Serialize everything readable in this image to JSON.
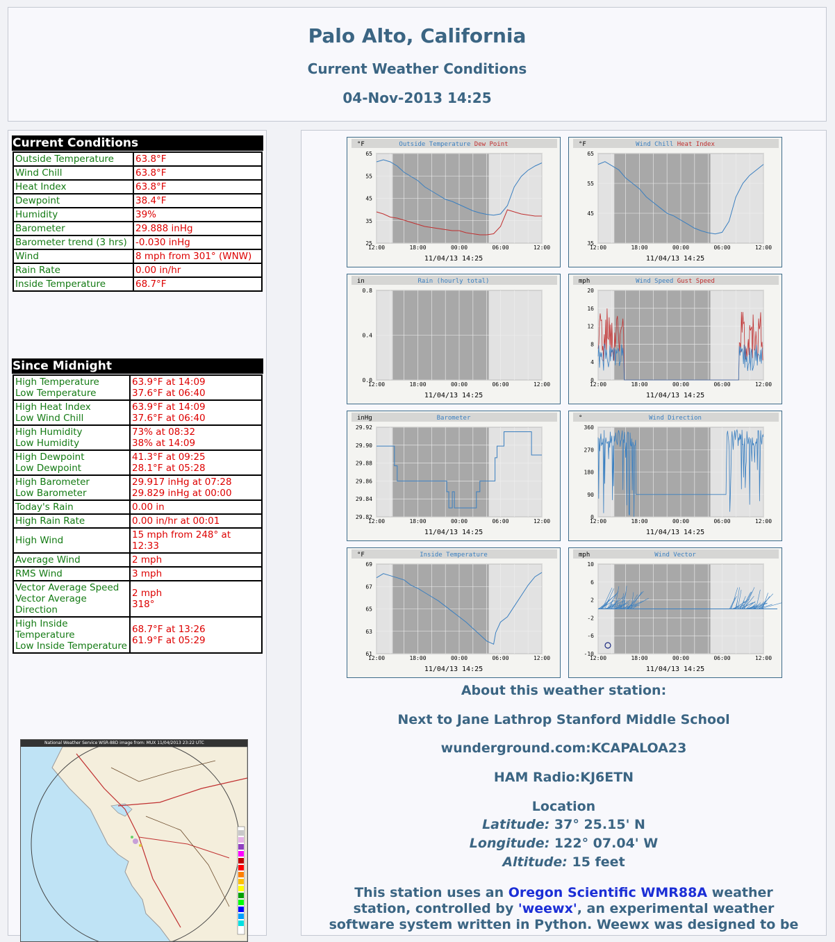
{
  "header": {
    "title": "Palo Alto, California",
    "subtitle": "Current Weather Conditions",
    "datetime": "04-Nov-2013 14:25"
  },
  "current": {
    "title": "Current Conditions",
    "rows": [
      {
        "label": "Outside Temperature",
        "value": "63.8°F"
      },
      {
        "label": "Wind Chill",
        "value": "63.8°F"
      },
      {
        "label": "Heat Index",
        "value": "63.8°F"
      },
      {
        "label": "Dewpoint",
        "value": "38.4°F"
      },
      {
        "label": "Humidity",
        "value": "39%"
      },
      {
        "label": "Barometer",
        "value": "29.888 inHg"
      },
      {
        "label": "Barometer trend (3 hrs)",
        "value": "-0.030 inHg"
      },
      {
        "label": "Wind",
        "value": "8 mph from 301° (WNW)"
      },
      {
        "label": "Rain Rate",
        "value": "0.00 in/hr"
      },
      {
        "label": "Inside Temperature",
        "value": "68.7°F"
      }
    ]
  },
  "since": {
    "title": "Since Midnight",
    "rows": [
      {
        "label1": "High Temperature",
        "label2": "Low Temperature",
        "value1": "63.9°F at 14:09",
        "value2": "37.6°F at 06:40"
      },
      {
        "label1": "High Heat Index",
        "label2": "Low Wind Chill",
        "value1": "63.9°F at 14:09",
        "value2": "37.6°F at 06:40"
      },
      {
        "label1": "High Humidity",
        "label2": "Low Humidity",
        "value1": "73% at 08:32",
        "value2": "38% at 14:09"
      },
      {
        "label1": "High Dewpoint",
        "label2": "Low Dewpoint",
        "value1": "41.3°F at 09:25",
        "value2": "28.1°F at 05:28"
      },
      {
        "label1": "High Barometer",
        "label2": "Low Barometer",
        "value1": "29.917 inHg at 07:28",
        "value2": "29.829 inHg at 00:00"
      },
      {
        "label1": "Today's Rain",
        "label2": "",
        "value1": "0.00 in",
        "value2": ""
      },
      {
        "label1": "High Rain Rate",
        "label2": "",
        "value1": "0.00 in/hr at 00:01",
        "value2": ""
      },
      {
        "label1": "High Wind",
        "label2": "",
        "value1": "15 mph from 248° at 12:33",
        "value2": ""
      },
      {
        "label1": "Average Wind",
        "label2": "",
        "value1": "2 mph",
        "value2": ""
      },
      {
        "label1": "RMS Wind",
        "label2": "",
        "value1": "3 mph",
        "value2": ""
      },
      {
        "label1": "Vector Average Speed",
        "label2": "Vector Average Direction",
        "value1": "2 mph",
        "value2": "318°"
      },
      {
        "label1": "High Inside Temperature",
        "label2": "Low Inside Temperature",
        "value1": "68.7°F at 13:26",
        "value2": "61.9°F at 05:29"
      }
    ]
  },
  "radar": {
    "banner": "National Weather Service WSR-88D image from: MUX 11/04/2013 23:22 UTC"
  },
  "plots": [
    {
      "id": "temp",
      "unit": "°F",
      "titles": [
        {
          "t": "Outside Temperature",
          "c": "#3a7fc0"
        },
        {
          "t": "Dew Point",
          "c": "#c03030"
        }
      ],
      "ylabels": [
        "65",
        "55",
        "45",
        "35",
        "25"
      ],
      "ymin": 25,
      "ymax": 68,
      "timestamp": "11/04/13 14:25",
      "series": [
        {
          "color": "#3a7fc0",
          "points": [
            [
              0,
              64
            ],
            [
              1,
              65
            ],
            [
              2,
              64
            ],
            [
              3,
              62
            ],
            [
              4,
              59
            ],
            [
              5,
              57
            ],
            [
              6,
              55
            ],
            [
              7,
              52
            ],
            [
              8,
              50
            ],
            [
              9,
              48
            ],
            [
              10,
              46
            ],
            [
              11,
              45
            ],
            [
              12,
              43.5
            ],
            [
              13,
              42
            ],
            [
              14,
              40.5
            ],
            [
              15,
              39.5
            ],
            [
              16,
              38.8
            ],
            [
              17,
              38.4
            ],
            [
              18,
              39
            ],
            [
              19,
              43
            ],
            [
              20,
              52
            ],
            [
              21,
              57
            ],
            [
              22,
              60
            ],
            [
              23,
              62
            ],
            [
              24,
              63.5
            ]
          ]
        },
        {
          "color": "#c03030",
          "points": [
            [
              0,
              40
            ],
            [
              1,
              39
            ],
            [
              2,
              37.5
            ],
            [
              3,
              37
            ],
            [
              4,
              36
            ],
            [
              5,
              35
            ],
            [
              6,
              34
            ],
            [
              7,
              33
            ],
            [
              8,
              32.5
            ],
            [
              9,
              32
            ],
            [
              10,
              31.5
            ],
            [
              11,
              31
            ],
            [
              12,
              31
            ],
            [
              13,
              30
            ],
            [
              14,
              29.5
            ],
            [
              15,
              29
            ],
            [
              16,
              29
            ],
            [
              17,
              29.5
            ],
            [
              18,
              33
            ],
            [
              19,
              41
            ],
            [
              20,
              40
            ],
            [
              21,
              39
            ],
            [
              22,
              38.5
            ],
            [
              23,
              38
            ],
            [
              24,
              38
            ]
          ]
        }
      ]
    },
    {
      "id": "chill",
      "unit": "°F",
      "titles": [
        {
          "t": "Wind Chill",
          "c": "#3a7fc0"
        },
        {
          "t": "Heat Index",
          "c": "#c03030"
        }
      ],
      "ylabels": [
        "65",
        "55",
        "45",
        "35"
      ],
      "ymin": 35,
      "ymax": 68,
      "timestamp": "11/04/13 14:25",
      "series": [
        {
          "color": "#3a7fc0",
          "points": [
            [
              0,
              64
            ],
            [
              1,
              65
            ],
            [
              2,
              63.5
            ],
            [
              3,
              62
            ],
            [
              4,
              59
            ],
            [
              5,
              57
            ],
            [
              6,
              55
            ],
            [
              7,
              52
            ],
            [
              8,
              50
            ],
            [
              9,
              48
            ],
            [
              10,
              46
            ],
            [
              11,
              45
            ],
            [
              12,
              43.5
            ],
            [
              13,
              42
            ],
            [
              14,
              40.5
            ],
            [
              15,
              39.5
            ],
            [
              16,
              38.8
            ],
            [
              17,
              38.4
            ],
            [
              18,
              39
            ],
            [
              19,
              43
            ],
            [
              20,
              52
            ],
            [
              21,
              57
            ],
            [
              22,
              60
            ],
            [
              23,
              62
            ],
            [
              24,
              64
            ]
          ]
        }
      ]
    },
    {
      "id": "rain",
      "unit": "in",
      "titles": [
        {
          "t": "Rain (hourly total)",
          "c": "#3a7fc0"
        }
      ],
      "ylabels": [
        "0.8",
        "0.4",
        "0.0"
      ],
      "ymin": 0,
      "ymax": 1,
      "timestamp": "11/04/13 14:25",
      "series": []
    },
    {
      "id": "windspeed",
      "unit": "mph",
      "titles": [
        {
          "t": "Wind Speed",
          "c": "#3a7fc0"
        },
        {
          "t": "Gust Speed",
          "c": "#c03030"
        }
      ],
      "ylabels": [
        "20",
        "16",
        "12",
        "8",
        "4",
        "0"
      ],
      "ymin": 0,
      "ymax": 20,
      "timestamp": "11/04/13 14:25",
      "series": []
    },
    {
      "id": "baro",
      "unit": "inHg",
      "titles": [
        {
          "t": "Barometer",
          "c": "#3a7fc0"
        }
      ],
      "ylabels": [
        "29.92",
        "29.90",
        "29.88",
        "29.86",
        "29.84",
        "29.82"
      ],
      "ymin": 29.82,
      "ymax": 29.92,
      "timestamp": "11/04/13 14:25",
      "series": [
        {
          "color": "#3a7fc0",
          "step": true,
          "points": [
            [
              0,
              29.899
            ],
            [
              2.5,
              29.899
            ],
            [
              2.6,
              29.877
            ],
            [
              3,
              29.86
            ],
            [
              10,
              29.86
            ],
            [
              10.2,
              29.848
            ],
            [
              10.5,
              29.83
            ],
            [
              11,
              29.848
            ],
            [
              11.3,
              29.83
            ],
            [
              14,
              29.83
            ],
            [
              14.5,
              29.848
            ],
            [
              15,
              29.86
            ],
            [
              17,
              29.86
            ],
            [
              17.2,
              29.886
            ],
            [
              17.5,
              29.899
            ],
            [
              18.5,
              29.915
            ],
            [
              22,
              29.915
            ],
            [
              22.5,
              29.889
            ],
            [
              24,
              29.889
            ]
          ]
        }
      ]
    },
    {
      "id": "winddir",
      "unit": "°",
      "titles": [
        {
          "t": "Wind Direction",
          "c": "#3a7fc0"
        }
      ],
      "ylabels": [
        "360",
        "270",
        "180",
        "90",
        "0"
      ],
      "ymin": 0,
      "ymax": 360,
      "timestamp": "11/04/13 14:25",
      "series": []
    },
    {
      "id": "inside",
      "unit": "°F",
      "titles": [
        {
          "t": "Inside Temperature",
          "c": "#3a7fc0"
        }
      ],
      "ylabels": [
        "69",
        "67",
        "65",
        "63",
        "61"
      ],
      "ymin": 61,
      "ymax": 69.5,
      "timestamp": "11/04/13 14:25",
      "series": [
        {
          "color": "#3a7fc0",
          "points": [
            [
              0,
              68.2
            ],
            [
              1,
              68.6
            ],
            [
              2,
              68.4
            ],
            [
              3,
              68.2
            ],
            [
              4,
              68
            ],
            [
              5,
              67.5
            ],
            [
              6,
              67.2
            ],
            [
              7,
              66.8
            ],
            [
              8,
              66.4
            ],
            [
              9,
              66
            ],
            [
              10,
              65.5
            ],
            [
              11,
              65
            ],
            [
              12,
              64.5
            ],
            [
              13,
              64
            ],
            [
              14,
              63.4
            ],
            [
              15,
              62.8
            ],
            [
              16,
              62.2
            ],
            [
              17,
              61.9
            ],
            [
              17.3,
              63
            ],
            [
              18,
              64
            ],
            [
              19,
              64.5
            ],
            [
              20,
              65.5
            ],
            [
              21,
              66.5
            ],
            [
              22,
              67.5
            ],
            [
              23,
              68.3
            ],
            [
              24,
              68.7
            ]
          ]
        }
      ]
    },
    {
      "id": "vector",
      "unit": "mph",
      "titles": [
        {
          "t": "Wind Vector",
          "c": "#3a7fc0"
        }
      ],
      "ylabels": [
        "10",
        "6",
        "2",
        "-2",
        "-6",
        "-10"
      ],
      "ymin": -10,
      "ymax": 10,
      "timestamp": "11/04/13 14:25",
      "series": []
    }
  ],
  "xlabels": [
    "12:00",
    "18:00",
    "00:00",
    "06:00",
    "12:00"
  ],
  "about": {
    "heading": "About this weather station:",
    "line1": "Next to Jane Lathrop Stanford Middle School",
    "line2": "wunderground.com:KCAPALOA23",
    "line3": "HAM Radio:KJ6ETN",
    "loc_title": "Location",
    "lat_label": "Latitude:",
    "lat_value": " 37° 25.15' N",
    "lon_label": "Longitude:",
    "lon_value": " 122° 07.04' W",
    "alt_label": "Altitude:",
    "alt_value": " 15 feet",
    "p1": "This station uses an ",
    "link1": "Oregon Scientific WMR88A",
    "p2": " weather",
    "p3": "station, controlled by ",
    "link2": "'weewx'",
    "p4": ", an experimental weather",
    "p5": "software system written in Python. Weewx was designed to be"
  }
}
